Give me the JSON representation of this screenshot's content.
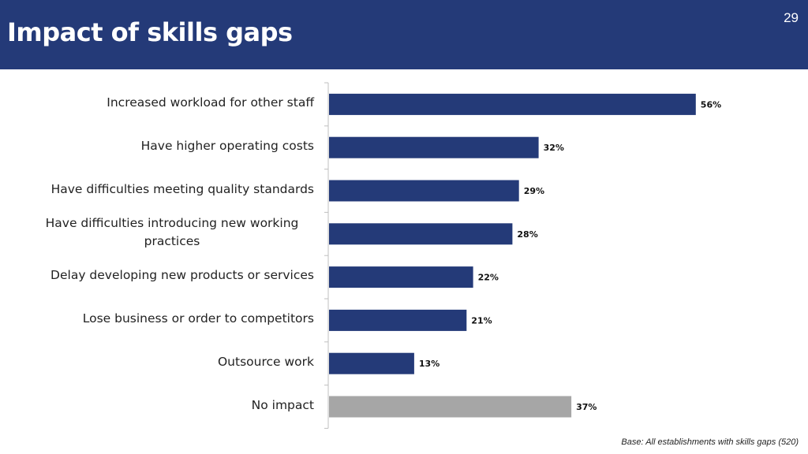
{
  "header": {
    "title": "Impact of skills gaps",
    "page_number": "29"
  },
  "colors": {
    "header_bg": "#243a78",
    "bar_primary": "#243a78",
    "bar_highlight": "#a6a6a6",
    "axis": "#bfbfbf"
  },
  "chart_data": {
    "type": "bar",
    "orientation": "horizontal",
    "categories": [
      "Increased workload for other staff",
      "Have higher operating costs",
      "Have difficulties meeting quality standards",
      "Have difficulties introducing new working practices",
      "Delay developing new products or services",
      "Lose business or order to competitors",
      "Outsource work",
      "No impact"
    ],
    "values": [
      56,
      32,
      29,
      28,
      22,
      21,
      13,
      37
    ],
    "data_labels": [
      "56%",
      "32%",
      "29%",
      "28%",
      "22%",
      "21%",
      "13%",
      "37%"
    ],
    "bar_colors": [
      "#243a78",
      "#243a78",
      "#243a78",
      "#243a78",
      "#243a78",
      "#243a78",
      "#243a78",
      "#a6a6a6"
    ],
    "xlim": [
      0,
      100
    ],
    "grid": false,
    "legend": "none",
    "unit": "%"
  },
  "footnote": "Base: All establishments with skills gaps (520)"
}
